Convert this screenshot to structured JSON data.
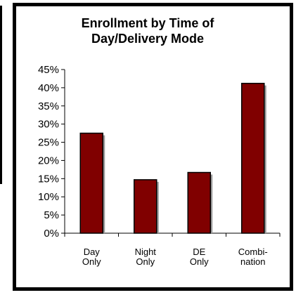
{
  "chart_data": {
    "type": "bar",
    "title_lines": [
      "Enrollment by Time of",
      "Day/Delivery Mode"
    ],
    "categories": [
      [
        "Day",
        "Only"
      ],
      [
        "Night",
        "Only"
      ],
      [
        "DE",
        "Only"
      ],
      [
        "Combi-",
        "nation"
      ]
    ],
    "values": [
      27.5,
      14.7,
      16.7,
      41.2
    ],
    "ylim": [
      0,
      45
    ],
    "yticks": [
      0,
      5,
      10,
      15,
      20,
      25,
      30,
      35,
      40,
      45
    ],
    "ytick_labels": [
      "0%",
      "5%",
      "10%",
      "15%",
      "20%",
      "25%",
      "30%",
      "35%",
      "40%",
      "45%"
    ],
    "bar_color": "#800000",
    "grid": false
  }
}
